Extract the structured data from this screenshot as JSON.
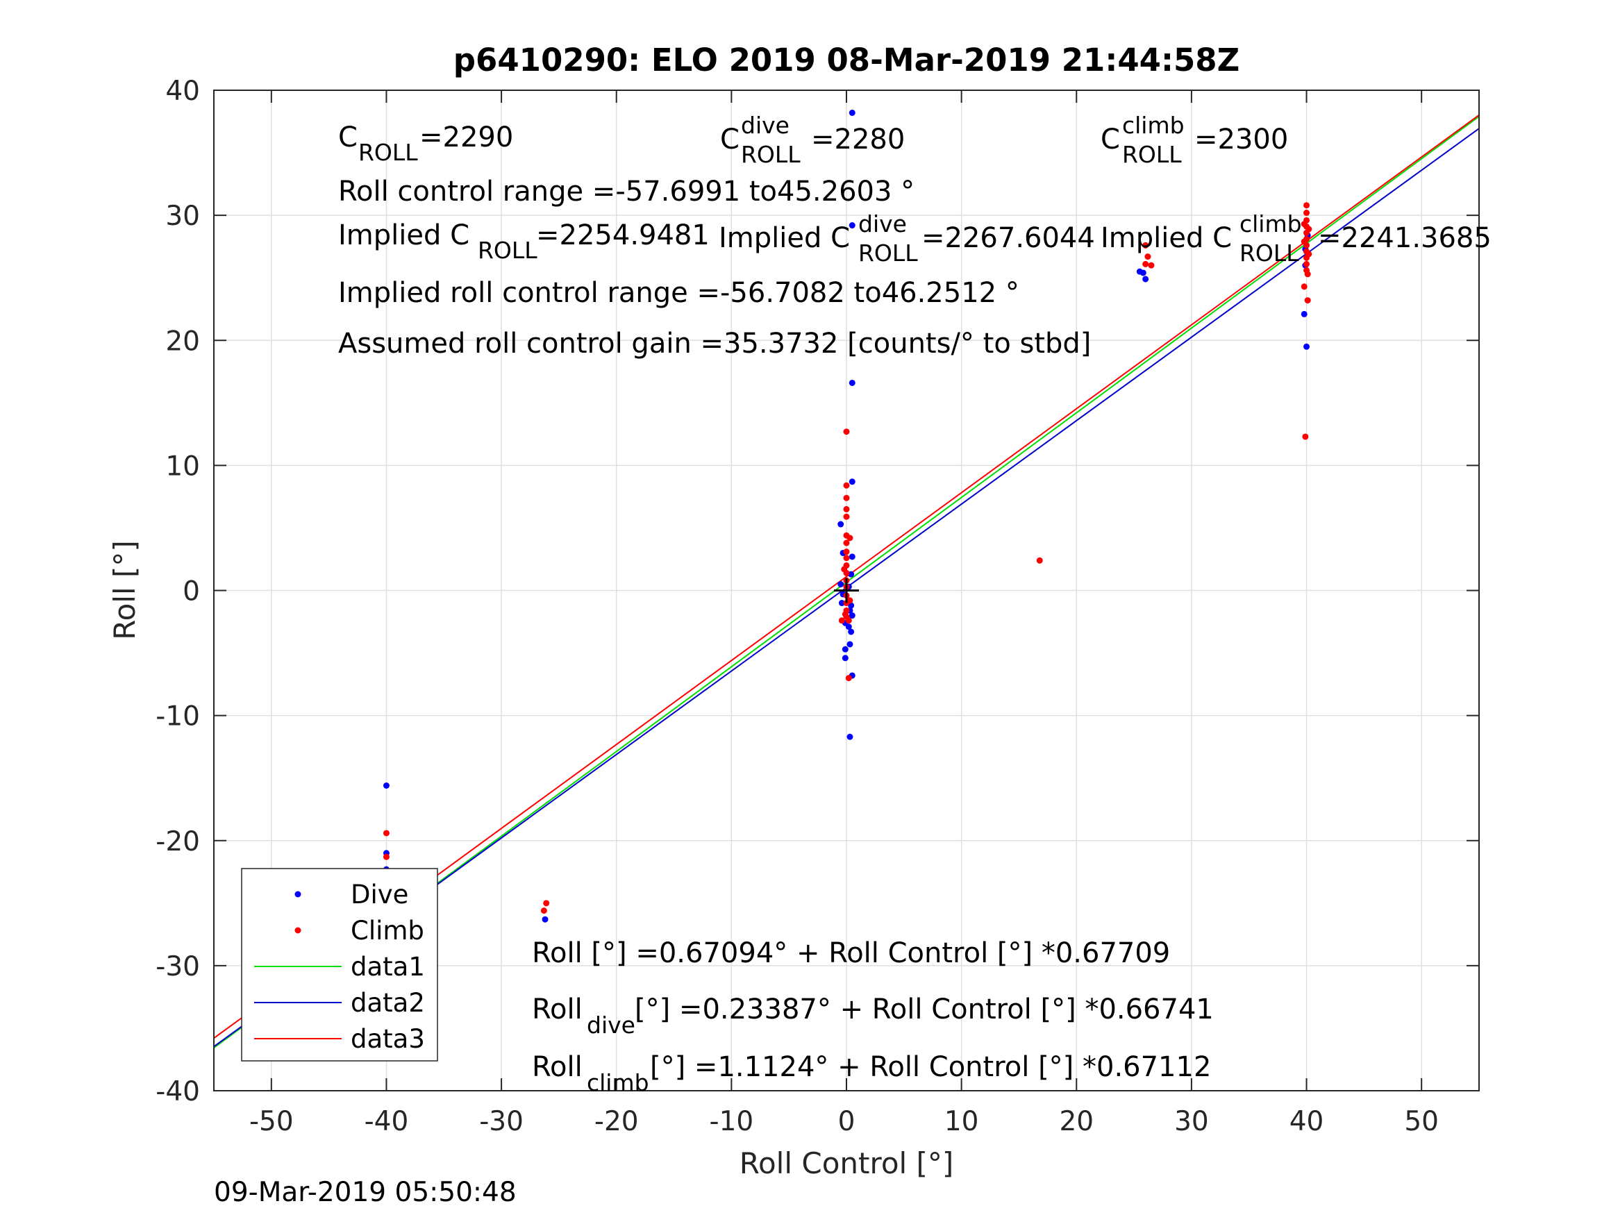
{
  "chart_data": {
    "type": "scatter",
    "title": "p6410290: ELO 2019 08-Mar-2019 21:44:58Z",
    "xlabel": "Roll Control [°]",
    "ylabel": "Roll [°]",
    "xlim": [
      -55,
      55
    ],
    "ylim": [
      -40,
      40
    ],
    "xticks": [
      -50,
      -40,
      -30,
      -20,
      -10,
      0,
      10,
      20,
      30,
      40,
      50
    ],
    "yticks": [
      -40,
      -30,
      -20,
      -10,
      0,
      10,
      20,
      30,
      40
    ],
    "xtick_labels": [
      "-50",
      "-40",
      "-30",
      "-20",
      "-10",
      "0",
      "10",
      "20",
      "30",
      "40",
      "50"
    ],
    "ytick_labels": [
      "-40",
      "-30",
      "-20",
      "-10",
      "0",
      "10",
      "20",
      "30",
      "40"
    ],
    "grid": true,
    "legend_position": "bottom-left",
    "timestamp": "09-Mar-2019 05:50:48",
    "annotations": {
      "c_roll_main": "C",
      "c_roll_sub": "ROLL",
      "c_roll_val": "=2290",
      "c_dive_main": "C",
      "c_dive_sup": "dive",
      "c_dive_sub": "ROLL",
      "c_dive_val": "=2280",
      "c_climb_main": "C",
      "c_climb_sup": "climb",
      "c_climb_sub": "ROLL",
      "c_climb_val": "=2300",
      "range_text": "Roll control range =-57.6991 to45.2603 °",
      "implied_pre": "Implied C",
      "implied_sub": "ROLL",
      "implied_val": " =2254.9481",
      "implied_dive_pre": "Implied C",
      "implied_dive_sup": "dive",
      "implied_dive_sub": "ROLL",
      "implied_dive_val": " =2267.6044",
      "implied_climb_pre": "Implied C",
      "implied_climb_sup": "climb",
      "implied_climb_sub": "ROLL",
      "implied_climb_val": " =2241.3685",
      "implied_range_text": "Implied roll control range =-56.7082 to46.2512 °",
      "gain_text": "Assumed roll control gain =35.3732 [counts/° to stbd]",
      "fit_all": "Roll [°] =0.67094° + Roll Control [°] *0.67709",
      "fit_dive_pre": "Roll",
      "fit_dive_sub": "dive",
      "fit_dive_post": " [°] =0.23387° + Roll Control [°] *0.66741",
      "fit_climb_pre": "Roll",
      "fit_climb_sub": "climb",
      "fit_climb_post": " [°] =1.1124° + Roll Control [°] *0.67112"
    },
    "series": [
      {
        "name": "Dive",
        "kind": "points",
        "color": "#0000ff",
        "points": [
          [
            -40,
            -15.6
          ],
          [
            -40,
            -21
          ],
          [
            -40,
            -22.3
          ],
          [
            -40,
            -22.8
          ],
          [
            -40,
            -23.5
          ],
          [
            -40,
            -24
          ],
          [
            -40,
            -24.5
          ],
          [
            -40,
            -25
          ],
          [
            -40,
            -25.4
          ],
          [
            -40,
            -25.8
          ],
          [
            -40,
            -26.1
          ],
          [
            -40,
            -26.5
          ],
          [
            -40,
            -26.9
          ],
          [
            -40,
            -27.3
          ],
          [
            -40,
            -27.7
          ],
          [
            -40,
            -28.1
          ],
          [
            -40,
            -28.6
          ],
          [
            -40,
            -29.3
          ],
          [
            -40,
            -30.3
          ],
          [
            -40,
            -32.2
          ],
          [
            -39.8,
            -24.2
          ],
          [
            -39.8,
            -26.8
          ],
          [
            -39.7,
            -27.6
          ],
          [
            -40.3,
            -27
          ],
          [
            -40.3,
            -28.4
          ],
          [
            -39.6,
            -27.1
          ],
          [
            -26.2,
            -26.3
          ],
          [
            0.5,
            38.2
          ],
          [
            0.5,
            29.2
          ],
          [
            0.5,
            16.6
          ],
          [
            0.5,
            8.7
          ],
          [
            -0.5,
            5.3
          ],
          [
            -0.3,
            3
          ],
          [
            0.5,
            2.7
          ],
          [
            0.4,
            1.3
          ],
          [
            -0.5,
            0.5
          ],
          [
            -0.3,
            -0.3
          ],
          [
            0.2,
            -0.8
          ],
          [
            0.4,
            -1.2
          ],
          [
            0.3,
            -1.6
          ],
          [
            0.5,
            -2
          ],
          [
            -0.1,
            -2.6
          ],
          [
            0.2,
            -2.9
          ],
          [
            0.4,
            -3.3
          ],
          [
            0.3,
            -4.3
          ],
          [
            -0.1,
            -4.7
          ],
          [
            -0.1,
            -5.4
          ],
          [
            0.5,
            -6.8
          ],
          [
            0.3,
            -11.7
          ],
          [
            0.2,
            0.3
          ],
          [
            -0.4,
            -1.0
          ],
          [
            25.5,
            25.5
          ],
          [
            25.8,
            25.4
          ],
          [
            26,
            24.9
          ],
          [
            39.8,
            22.1
          ],
          [
            40,
            19.5
          ],
          [
            39.9,
            27.3
          ],
          [
            39.9,
            26
          ],
          [
            40.1,
            28.4
          ]
        ]
      },
      {
        "name": "Climb",
        "kind": "points",
        "color": "#ff0000",
        "points": [
          [
            -40,
            -19.4
          ],
          [
            -40,
            -21.3
          ],
          [
            -40,
            -22.6
          ],
          [
            -40,
            -24.3
          ],
          [
            -40,
            -25
          ],
          [
            -40,
            -25.4
          ],
          [
            -40,
            -25.8
          ],
          [
            -40,
            -26.2
          ],
          [
            -40,
            -26.6
          ],
          [
            -40,
            -27
          ],
          [
            -40.2,
            -25.5
          ],
          [
            -39.8,
            -26.3
          ],
          [
            -40.3,
            -26.8
          ],
          [
            -39.7,
            -25.9
          ],
          [
            -26.1,
            -25
          ],
          [
            -26.3,
            -25.6
          ],
          [
            0,
            12.7
          ],
          [
            0,
            8.4
          ],
          [
            0,
            7.4
          ],
          [
            0,
            6.5
          ],
          [
            0,
            5.9
          ],
          [
            0,
            4.4
          ],
          [
            0,
            3.8
          ],
          [
            0,
            3.1
          ],
          [
            0,
            2.6
          ],
          [
            0,
            2.0
          ],
          [
            0,
            1.4
          ],
          [
            0,
            0.8
          ],
          [
            0,
            0.3
          ],
          [
            0,
            -0.4
          ],
          [
            0,
            -1.0
          ],
          [
            0,
            -1.6
          ],
          [
            0,
            -2.1
          ],
          [
            0.2,
            -2.4
          ],
          [
            -0.4,
            -2.4
          ],
          [
            0.2,
            -7
          ],
          [
            0.3,
            4.2
          ],
          [
            -0.2,
            1.7
          ],
          [
            0.3,
            -0.8
          ],
          [
            -0.1,
            -1.9
          ],
          [
            16.8,
            2.4
          ],
          [
            26,
            27.6
          ],
          [
            26.2,
            26.7
          ],
          [
            26.5,
            26
          ],
          [
            26,
            26.1
          ],
          [
            40,
            30.8
          ],
          [
            40,
            30.2
          ],
          [
            40,
            29.6
          ],
          [
            40,
            29.1
          ],
          [
            40,
            28.6
          ],
          [
            40,
            28.1
          ],
          [
            40,
            27.6
          ],
          [
            40,
            27.1
          ],
          [
            40,
            26.6
          ],
          [
            40,
            26.1
          ],
          [
            40,
            25.6
          ],
          [
            40.1,
            25.3
          ],
          [
            39.8,
            24.3
          ],
          [
            40.1,
            23.2
          ],
          [
            39.9,
            12.3
          ],
          [
            39.8,
            29.3
          ],
          [
            40.2,
            28.9
          ],
          [
            39.8,
            27.9
          ],
          [
            40.2,
            26.9
          ]
        ]
      },
      {
        "name": "data1",
        "kind": "line",
        "color": "#00dd00",
        "x": [
          -55,
          55
        ],
        "y": [
          -36.57,
          37.91
        ]
      },
      {
        "name": "data2",
        "kind": "line",
        "color": "#0000cc",
        "x": [
          -55,
          55
        ],
        "y": [
          -36.47,
          36.94
        ]
      },
      {
        "name": "data3",
        "kind": "line",
        "color": "#ff0000",
        "x": [
          -55,
          55
        ],
        "y": [
          -35.8,
          38.02
        ]
      }
    ],
    "center_marker": [
      0,
      0
    ]
  }
}
